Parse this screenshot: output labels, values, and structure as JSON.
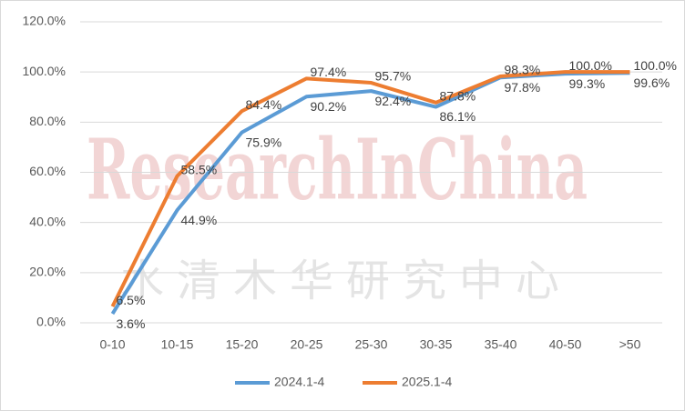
{
  "chart_data": {
    "type": "line",
    "watermark": "ResearchInChina",
    "watermark_subtext": "水清木华研究中心",
    "categories": [
      "0-10",
      "10-15",
      "15-20",
      "20-25",
      "25-30",
      "30-35",
      "35-40",
      "40-50",
      ">50"
    ],
    "series": [
      {
        "name": "2024.1-4",
        "color": "#5b9bd5",
        "values": [
          3.6,
          44.9,
          75.9,
          90.2,
          92.4,
          86.1,
          97.8,
          99.3,
          99.6
        ],
        "value_labels": [
          "3.6%",
          "44.9%",
          "75.9%",
          "90.2%",
          "92.4%",
          "86.1%",
          "97.8%",
          "99.3%",
          "99.6%"
        ]
      },
      {
        "name": "2025.1-4",
        "color": "#ed7d31",
        "values": [
          6.5,
          58.5,
          84.4,
          97.4,
          95.7,
          87.8,
          98.3,
          100.0,
          100.0
        ],
        "value_labels": [
          "6.5%",
          "58.5%",
          "84.4%",
          "97.4%",
          "95.7%",
          "87.8%",
          "98.3%",
          "100.0%",
          "100.0%"
        ]
      }
    ],
    "ylim": [
      0,
      120
    ],
    "yticks": [
      {
        "value": 0,
        "label": "0.0%"
      },
      {
        "value": 20,
        "label": "20.0%"
      },
      {
        "value": 40,
        "label": "40.0%"
      },
      {
        "value": 60,
        "label": "60.0%"
      },
      {
        "value": 80,
        "label": "80.0%"
      },
      {
        "value": 100,
        "label": "100.0%"
      },
      {
        "value": 120,
        "label": "120.0%"
      }
    ],
    "grid": true,
    "legend": "bottom"
  }
}
